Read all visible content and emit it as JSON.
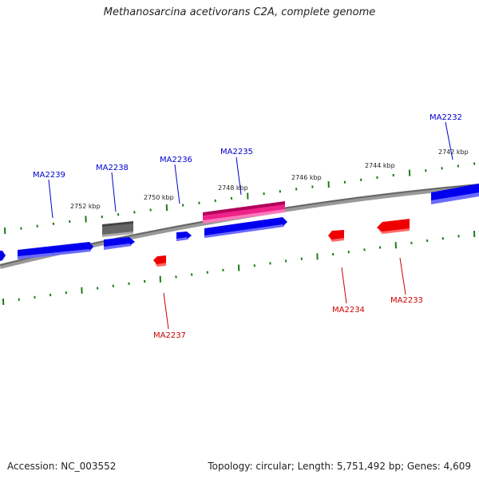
{
  "title": "Methanosarcina acetivorans C2A, complete genome",
  "accession": "Accession: NC_003552",
  "topology": "Topology: circular; Length: 5,751,492 bp; Genes: 4,609",
  "ticks": [
    "2742 kbp",
    "2744 kbp",
    "2746 kbp",
    "2748 kbp",
    "2750 kbp",
    "2752 kbp"
  ],
  "genes": [
    {
      "id": "MA2232",
      "strand": "+",
      "color": "#0000ee"
    },
    {
      "id": "MA2233",
      "strand": "-",
      "color": "#ee0000"
    },
    {
      "id": "MA2234",
      "strand": "-",
      "color": "#ee0000"
    },
    {
      "id": "MA2235",
      "strand": "+",
      "color": "#0000ee"
    },
    {
      "id": "MA2236",
      "strand": "+",
      "color": "#0000ee"
    },
    {
      "id": "MA2237",
      "strand": "-",
      "color": "#ee0000"
    },
    {
      "id": "MA2238",
      "strand": "+",
      "color": "#0000ee"
    },
    {
      "id": "MA2239",
      "strand": "+",
      "color": "#0000ee"
    }
  ],
  "colors": {
    "forward_gene": "#0000ee",
    "reverse_gene": "#ee0000",
    "rna_gene": "#ee2288",
    "pseudo_gene": "#666666",
    "tick": "#1a7a1a",
    "backbone": "#777777"
  }
}
